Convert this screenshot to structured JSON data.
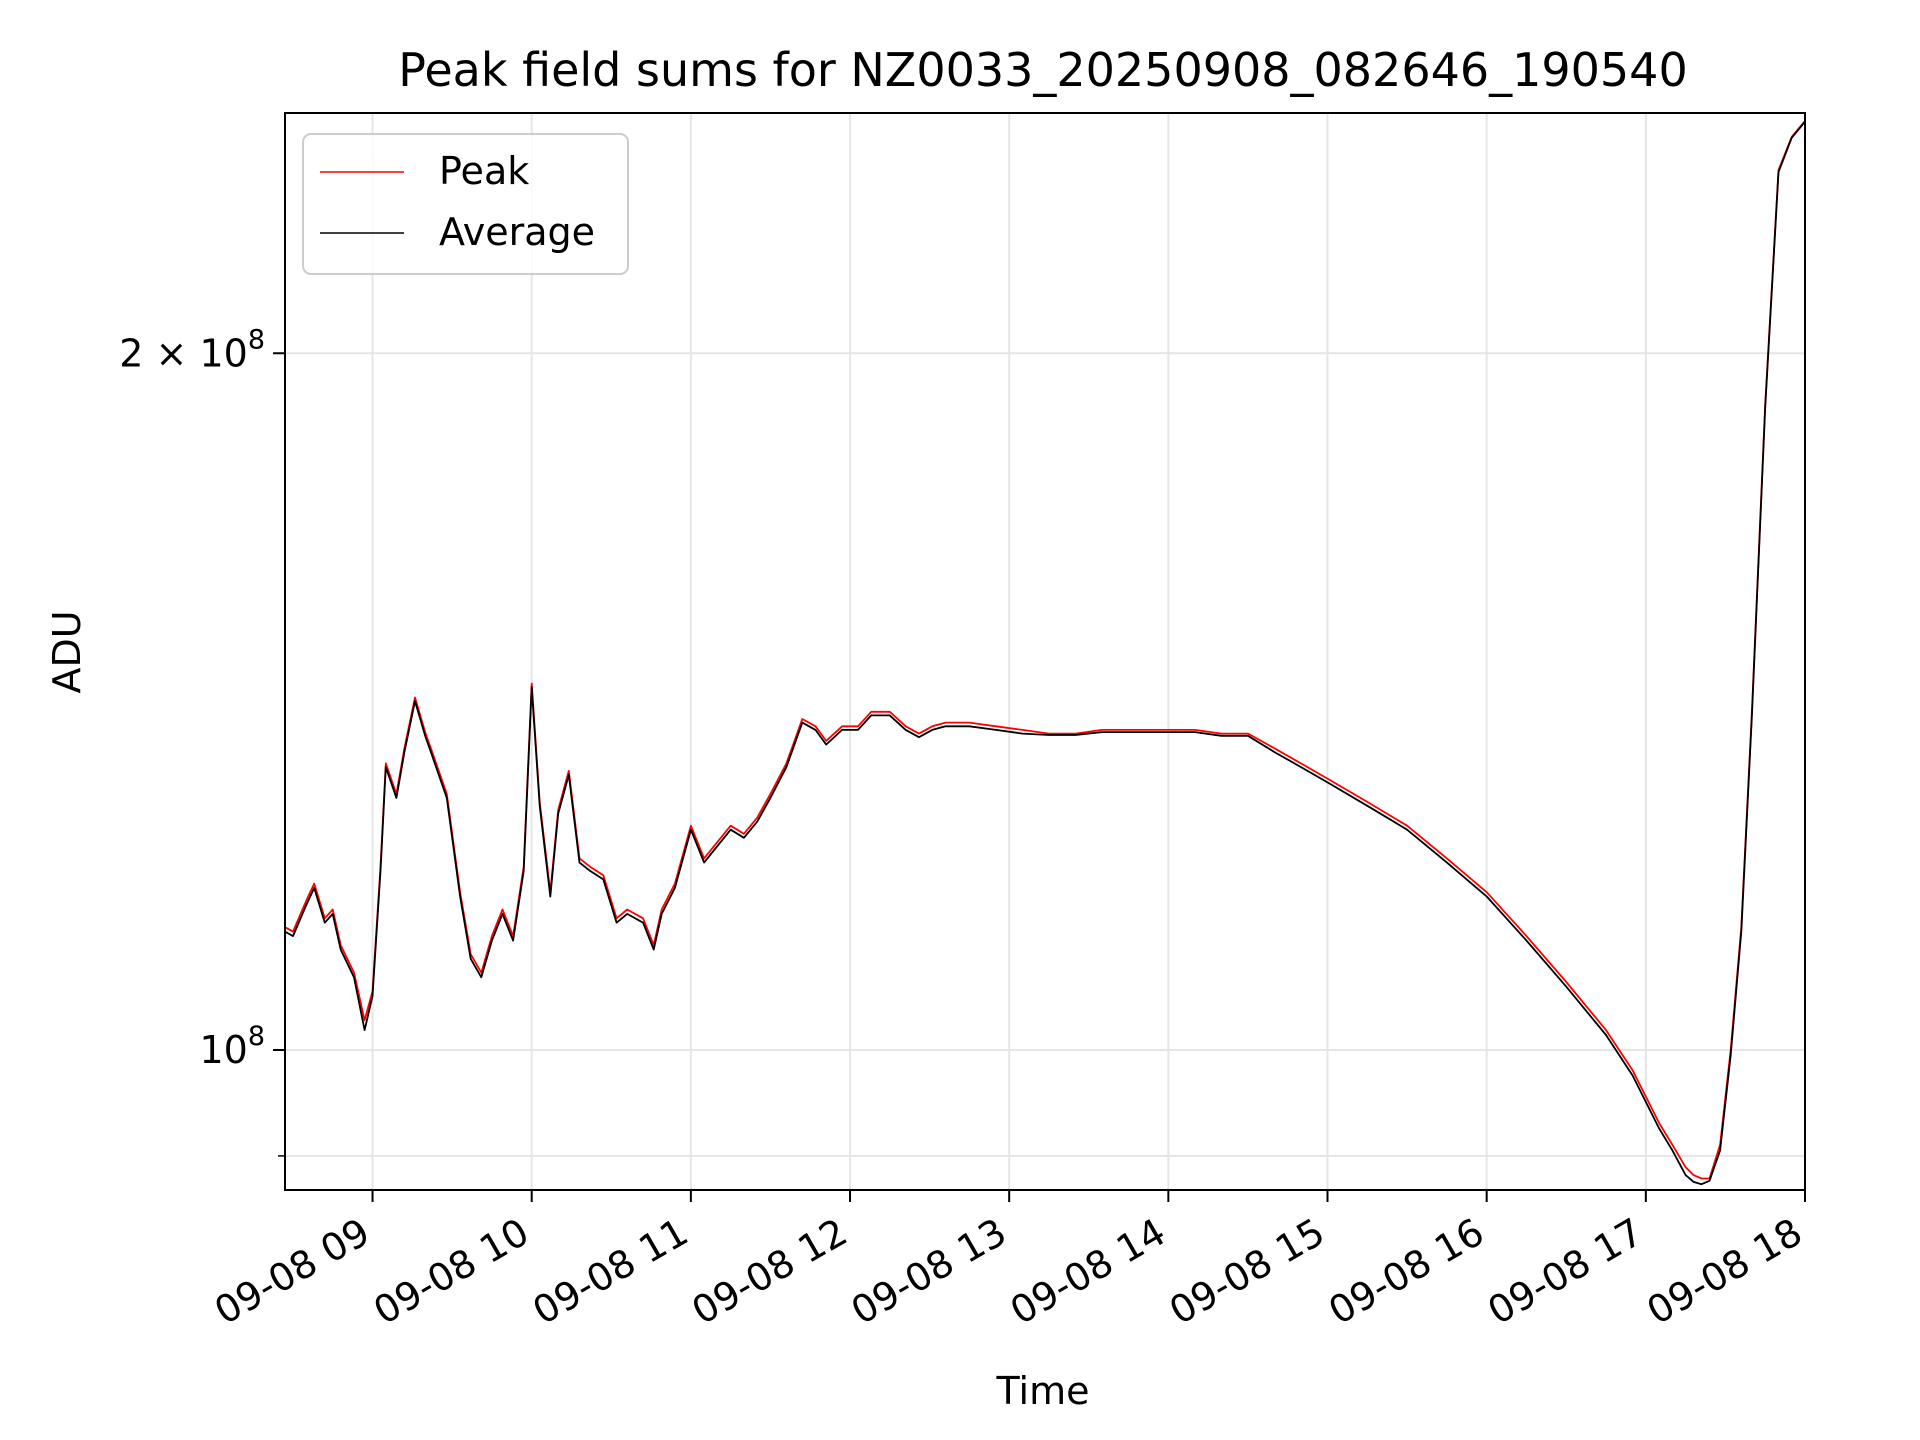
{
  "chart_data": {
    "type": "line",
    "title": "Peak field sums for NZ0033_20250908_082646_190540",
    "xlabel": "Time",
    "ylabel": "ADU",
    "y_scale": "log",
    "ylim": [
      87000000,
      254000000
    ],
    "xlim": [
      "2025-09-08 08:27",
      "2025-09-08 18:00"
    ],
    "grid": true,
    "legend": {
      "placement": "upper-left",
      "entries": [
        "Peak",
        "Average"
      ]
    },
    "x_ticks": [
      "09-08 09",
      "09-08 10",
      "09-08 11",
      "09-08 12",
      "09-08 13",
      "09-08 14",
      "09-08 15",
      "09-08 16",
      "09-08 17",
      "09-08 18"
    ],
    "y_ticks_major": [
      {
        "value": 100000000,
        "label": "10^8"
      },
      {
        "value": 200000000,
        "label": "2×10^8"
      }
    ],
    "y_ticks_minor": [
      90000000
    ],
    "series_colors": {
      "Peak": "#ff0000",
      "Average": "#000000"
    },
    "x": [
      "2025-09-08 08:27",
      "2025-09-08 08:30",
      "2025-09-08 08:35",
      "2025-09-08 08:38",
      "2025-09-08 08:42",
      "2025-09-08 08:45",
      "2025-09-08 08:48",
      "2025-09-08 08:53",
      "2025-09-08 08:57",
      "2025-09-08 09:00",
      "2025-09-08 09:03",
      "2025-09-08 09:05",
      "2025-09-08 09:09",
      "2025-09-08 09:12",
      "2025-09-08 09:16",
      "2025-09-08 09:20",
      "2025-09-08 09:22",
      "2025-09-08 09:28",
      "2025-09-08 09:33",
      "2025-09-08 09:37",
      "2025-09-08 09:41",
      "2025-09-08 09:45",
      "2025-09-08 09:49",
      "2025-09-08 09:53",
      "2025-09-08 09:57",
      "2025-09-08 10:00",
      "2025-09-08 10:03",
      "2025-09-08 10:07",
      "2025-09-08 10:10",
      "2025-09-08 10:14",
      "2025-09-08 10:18",
      "2025-09-08 10:22",
      "2025-09-08 10:27",
      "2025-09-08 10:32",
      "2025-09-08 10:36",
      "2025-09-08 10:42",
      "2025-09-08 10:46",
      "2025-09-08 10:49",
      "2025-09-08 10:54",
      "2025-09-08 11:00",
      "2025-09-08 11:05",
      "2025-09-08 11:10",
      "2025-09-08 11:15",
      "2025-09-08 11:20",
      "2025-09-08 11:25",
      "2025-09-08 11:30",
      "2025-09-08 11:36",
      "2025-09-08 11:42",
      "2025-09-08 11:47",
      "2025-09-08 11:51",
      "2025-09-08 11:57",
      "2025-09-08 12:03",
      "2025-09-08 12:08",
      "2025-09-08 12:15",
      "2025-09-08 12:21",
      "2025-09-08 12:26",
      "2025-09-08 12:31",
      "2025-09-08 12:36",
      "2025-09-08 12:45",
      "2025-09-08 12:55",
      "2025-09-08 13:05",
      "2025-09-08 13:15",
      "2025-09-08 13:25",
      "2025-09-08 13:35",
      "2025-09-08 13:45",
      "2025-09-08 14:00",
      "2025-09-08 14:10",
      "2025-09-08 14:20",
      "2025-09-08 14:30",
      "2025-09-08 14:40",
      "2025-09-08 14:50",
      "2025-09-08 15:00",
      "2025-09-08 15:15",
      "2025-09-08 15:30",
      "2025-09-08 15:45",
      "2025-09-08 16:00",
      "2025-09-08 16:15",
      "2025-09-08 16:30",
      "2025-09-08 16:45",
      "2025-09-08 16:55",
      "2025-09-08 17:05",
      "2025-09-08 17:10",
      "2025-09-08 17:15",
      "2025-09-08 17:18",
      "2025-09-08 17:21",
      "2025-09-08 17:24",
      "2025-09-08 17:28",
      "2025-09-08 17:32",
      "2025-09-08 17:36",
      "2025-09-08 17:40",
      "2025-09-08 17:45",
      "2025-09-08 17:50",
      "2025-09-08 17:55",
      "2025-09-08 18:00"
    ],
    "series": [
      {
        "name": "Peak",
        "values": [
          113000000,
          112500000,
          116000000,
          118000000,
          114000000,
          115000000,
          111000000,
          108000000,
          103000000,
          106000000,
          120000000,
          133000000,
          129000000,
          135000000,
          142000000,
          137000000,
          135000000,
          129000000,
          117000000,
          110000000,
          108000000,
          112000000,
          115000000,
          112000000,
          120000000,
          144000000,
          128000000,
          117000000,
          127000000,
          132000000,
          121000000,
          120000000,
          119000000,
          114000000,
          115000000,
          114000000,
          111000000,
          115000000,
          118000000,
          125000000,
          121000000,
          123000000,
          125000000,
          124000000,
          126000000,
          129000000,
          133000000,
          139000000,
          138000000,
          136000000,
          138000000,
          138000000,
          140000000,
          140000000,
          138000000,
          137000000,
          138000000,
          138500000,
          138500000,
          138000000,
          137500000,
          137000000,
          137000000,
          137500000,
          137500000,
          137500000,
          137500000,
          137000000,
          137000000,
          135000000,
          133000000,
          131000000,
          128000000,
          125000000,
          121000000,
          117000000,
          112000000,
          107000000,
          102000000,
          98000000,
          93000000,
          91000000,
          89000000,
          88300000,
          88000000,
          88000000,
          91000000,
          100000000,
          113000000,
          140000000,
          190000000,
          240000000,
          248000000,
          252000000
        ]
      },
      {
        "name": "Average",
        "values": [
          112500000,
          112000000,
          115500000,
          117500000,
          113500000,
          114500000,
          110500000,
          107500000,
          102000000,
          105500000,
          119500000,
          132500000,
          128500000,
          134500000,
          141500000,
          136500000,
          134500000,
          128500000,
          116500000,
          109500000,
          107500000,
          111500000,
          114500000,
          111500000,
          119500000,
          143500000,
          127500000,
          116500000,
          126500000,
          131500000,
          120500000,
          119500000,
          118500000,
          113500000,
          114500000,
          113500000,
          110500000,
          114500000,
          117500000,
          124500000,
          120500000,
          122500000,
          124500000,
          123500000,
          125500000,
          128500000,
          132500000,
          138500000,
          137500000,
          135500000,
          137500000,
          137500000,
          139500000,
          139500000,
          137500000,
          136500000,
          137500000,
          138000000,
          138000000,
          137500000,
          137000000,
          136800000,
          136800000,
          137200000,
          137200000,
          137200000,
          137200000,
          136700000,
          136700000,
          134500000,
          132500000,
          130500000,
          127500000,
          124500000,
          120500000,
          116500000,
          111500000,
          106500000,
          101500000,
          97500000,
          92500000,
          90500000,
          88300000,
          87700000,
          87500000,
          87800000,
          90500000,
          99500000,
          112500000,
          139500000,
          189500000,
          239500000,
          247800000,
          251800000
        ]
      }
    ]
  }
}
